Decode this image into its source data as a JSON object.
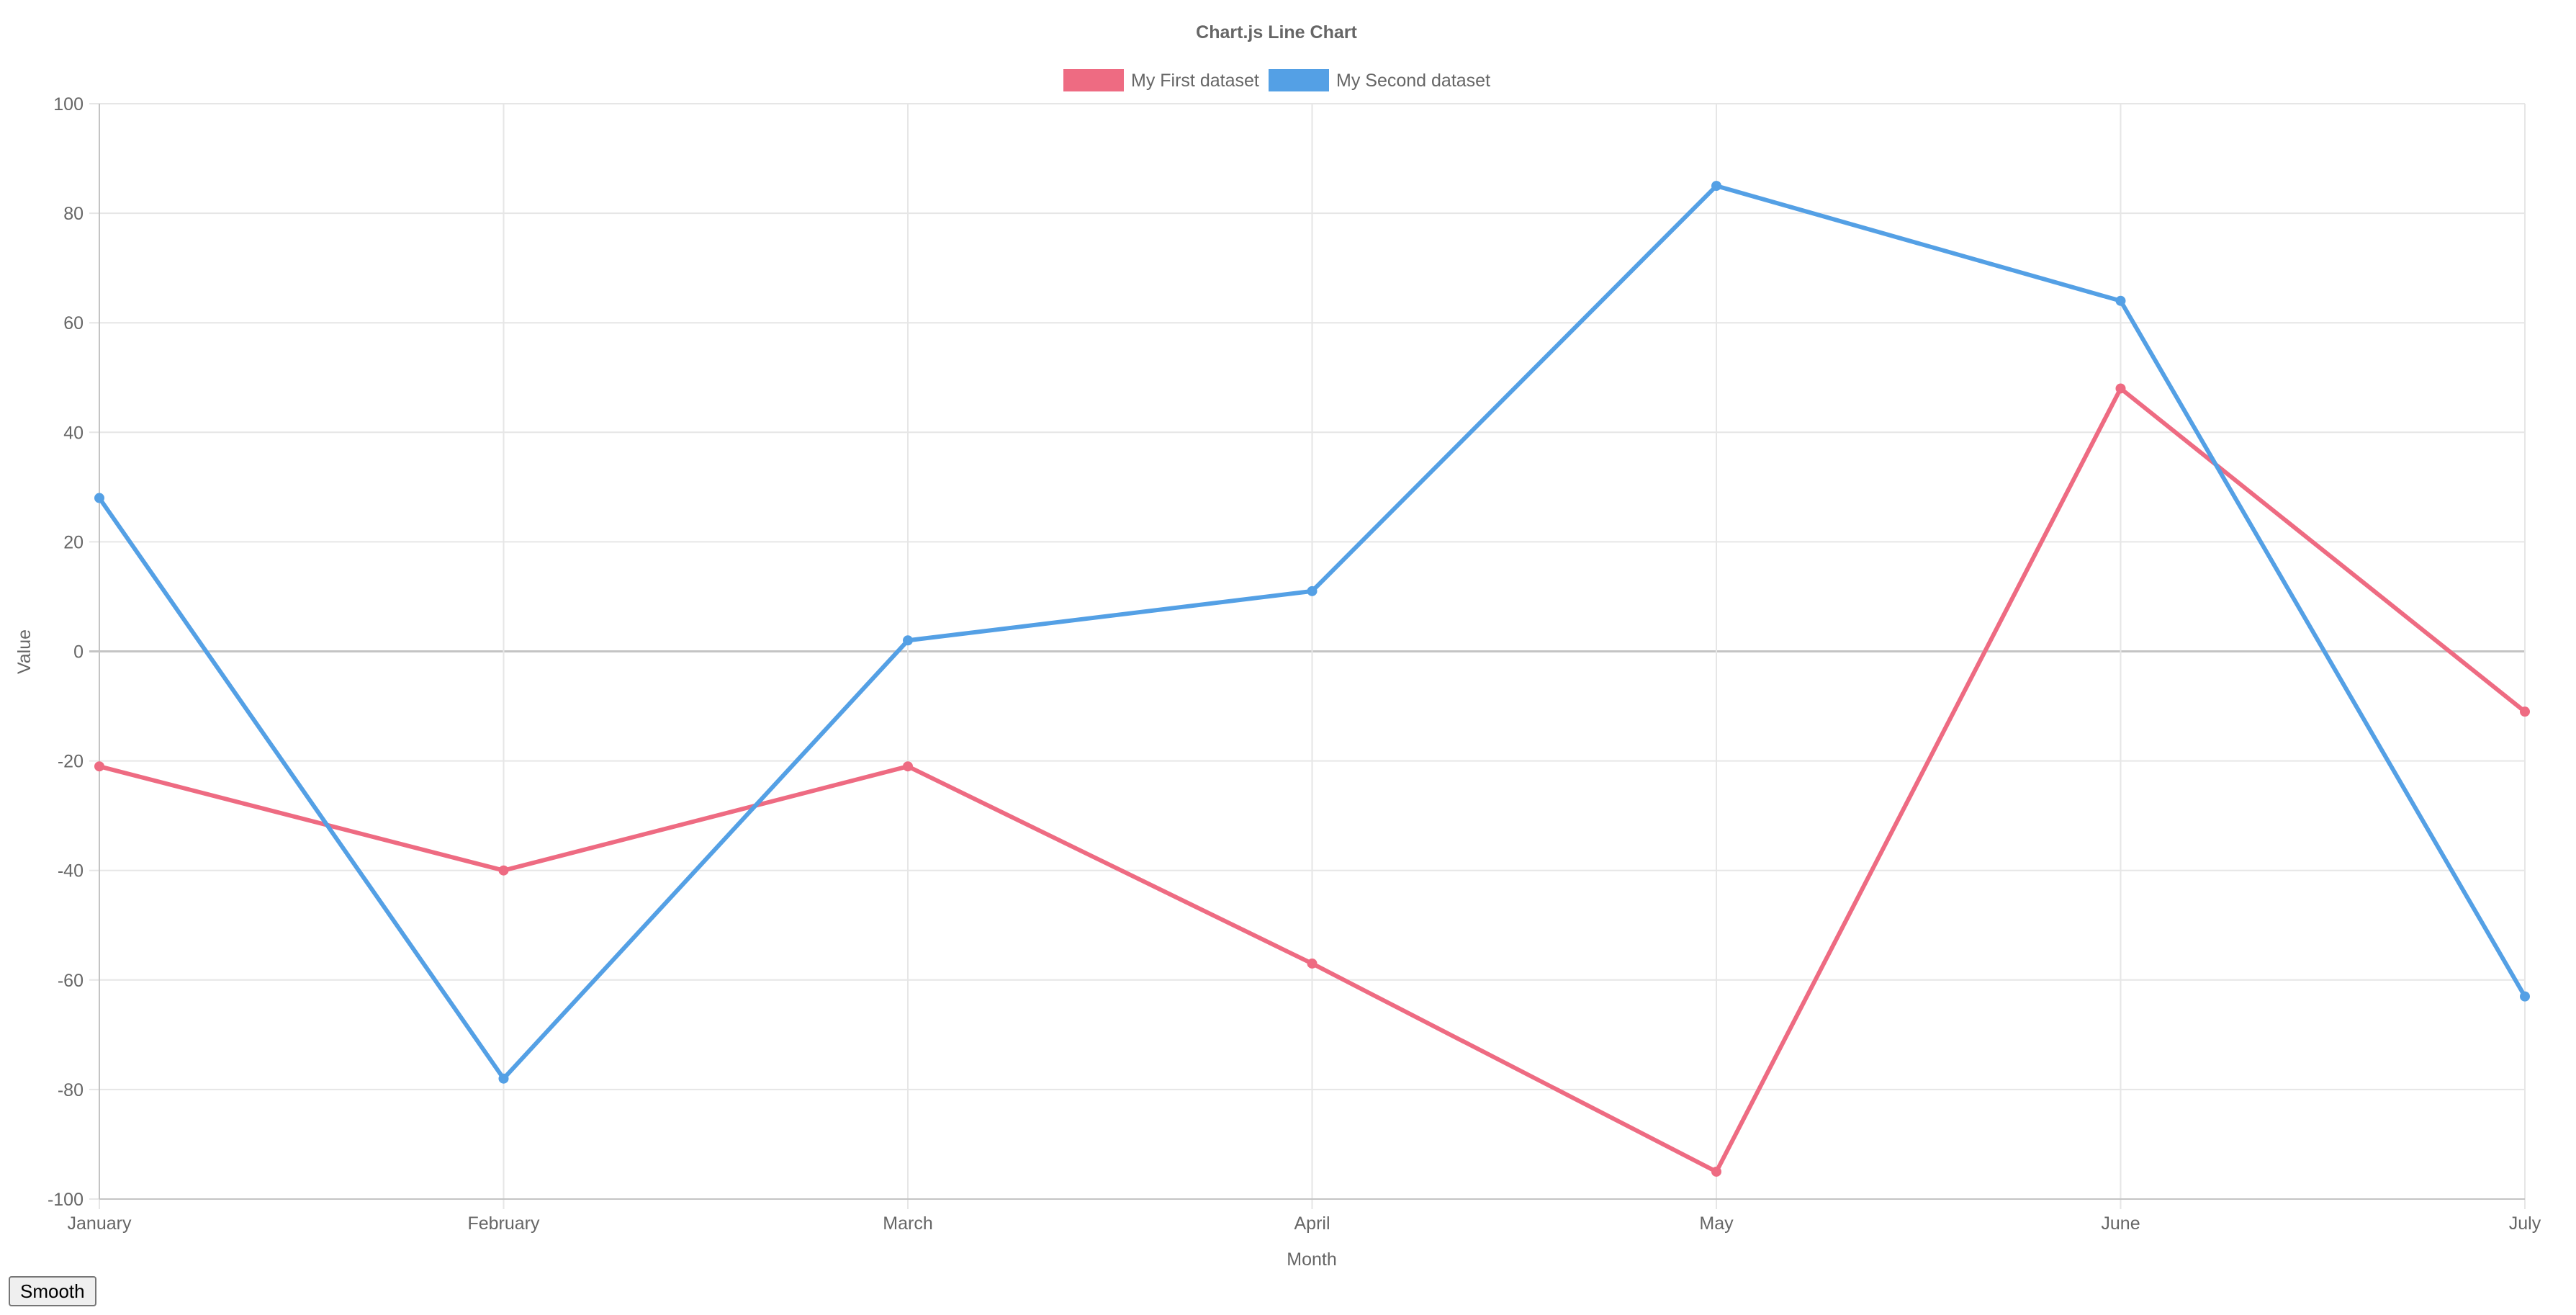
{
  "controls": {
    "smooth_label": "Smooth"
  },
  "chart_data": {
    "type": "line",
    "title": "Chart.js Line Chart",
    "xlabel": "Month",
    "ylabel": "Value",
    "categories": [
      "January",
      "February",
      "March",
      "April",
      "May",
      "June",
      "July"
    ],
    "ylim": [
      -100,
      100
    ],
    "yticks": [
      100,
      80,
      60,
      40,
      20,
      0,
      -20,
      -40,
      -60,
      -80,
      -100
    ],
    "grid": true,
    "legend_position": "top",
    "series": [
      {
        "name": "My First dataset",
        "color": "#ee6b82",
        "values": [
          -21,
          -40,
          -21,
          -57,
          -95,
          48,
          -11
        ]
      },
      {
        "name": "My Second dataset",
        "color": "#54a0e5",
        "values": [
          28,
          -78,
          2,
          11,
          85,
          64,
          -63
        ]
      }
    ]
  }
}
